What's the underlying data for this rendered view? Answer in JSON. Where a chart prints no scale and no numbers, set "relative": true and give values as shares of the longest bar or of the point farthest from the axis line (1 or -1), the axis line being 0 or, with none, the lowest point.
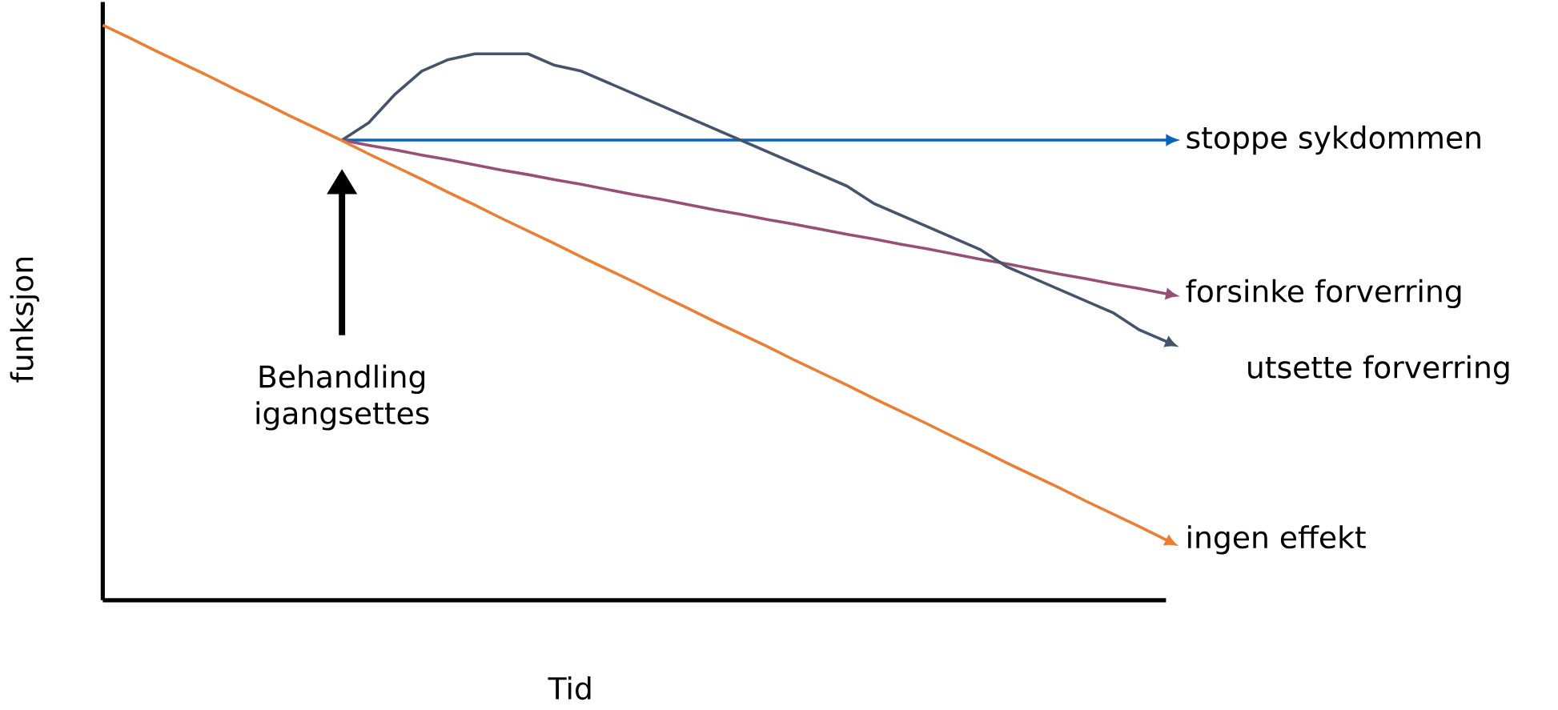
{
  "chart_data": {
    "type": "line",
    "relative": true,
    "xlabel": "Tid",
    "ylabel": "funksjon",
    "categories": [
      null,
      null,
      null,
      null,
      null,
      null,
      null,
      null,
      null,
      null,
      null,
      null,
      null,
      null,
      null,
      null,
      null,
      null,
      null,
      null,
      null,
      null,
      null,
      null,
      null,
      null,
      null,
      null,
      null,
      null,
      null,
      null,
      null,
      null,
      null,
      null,
      null,
      null,
      null,
      null,
      null
    ],
    "series": [
      {
        "name": "stoppe sykdommen",
        "color": "#0563c1",
        "values": [
          null,
          null,
          null,
          null,
          null,
          null,
          null,
          null,
          null,
          0.8,
          0.8,
          0.8,
          0.8,
          0.8,
          0.8,
          0.8,
          0.8,
          0.8,
          0.8,
          0.8,
          0.8,
          0.8,
          0.8,
          0.8,
          0.8,
          0.8,
          0.8,
          0.8,
          0.8,
          0.8,
          0.8,
          0.8,
          0.8,
          0.8,
          0.8,
          0.8,
          0.8,
          0.8,
          0.8,
          0.8,
          0.8
        ]
      },
      {
        "name": "forsinke forverring",
        "color": "#984f76",
        "values": [
          null,
          null,
          null,
          null,
          null,
          null,
          null,
          null,
          null,
          0.8,
          0.791,
          0.783,
          0.774,
          0.766,
          0.757,
          0.748,
          0.74,
          0.731,
          0.723,
          0.714,
          0.705,
          0.697,
          0.688,
          0.679,
          0.671,
          0.662,
          0.654,
          0.645,
          0.636,
          0.628,
          0.619,
          0.611,
          0.602,
          0.593,
          0.585,
          0.576,
          0.567,
          0.559,
          0.55,
          0.542,
          0.533
        ]
      },
      {
        "name": "utsette forverring",
        "color": "#44546a",
        "values": [
          null,
          null,
          null,
          null,
          null,
          null,
          null,
          null,
          null,
          0.8,
          0.83,
          0.88,
          0.92,
          0.94,
          0.95,
          0.95,
          0.95,
          0.93,
          0.92,
          0.9,
          0.88,
          0.86,
          0.84,
          0.82,
          0.8,
          0.78,
          0.76,
          0.74,
          0.72,
          0.69,
          0.67,
          0.65,
          0.63,
          0.61,
          0.58,
          0.56,
          0.54,
          0.52,
          0.5,
          0.47,
          0.45
        ]
      },
      {
        "name": "ingen effekt",
        "color": "#ed7d31",
        "values": [
          1.0,
          0.978,
          0.955,
          0.933,
          0.911,
          0.888,
          0.866,
          0.843,
          0.821,
          0.799,
          0.776,
          0.754,
          0.732,
          0.709,
          0.687,
          0.664,
          0.642,
          0.62,
          0.597,
          0.575,
          0.553,
          0.53,
          0.508,
          0.485,
          0.463,
          0.441,
          0.418,
          0.396,
          0.374,
          0.351,
          0.329,
          0.307,
          0.284,
          0.262,
          0.239,
          0.217,
          0.195,
          0.172,
          0.15,
          0.128,
          0.105
        ]
      }
    ],
    "annotations": [
      "Behandling igangsettes"
    ]
  }
}
